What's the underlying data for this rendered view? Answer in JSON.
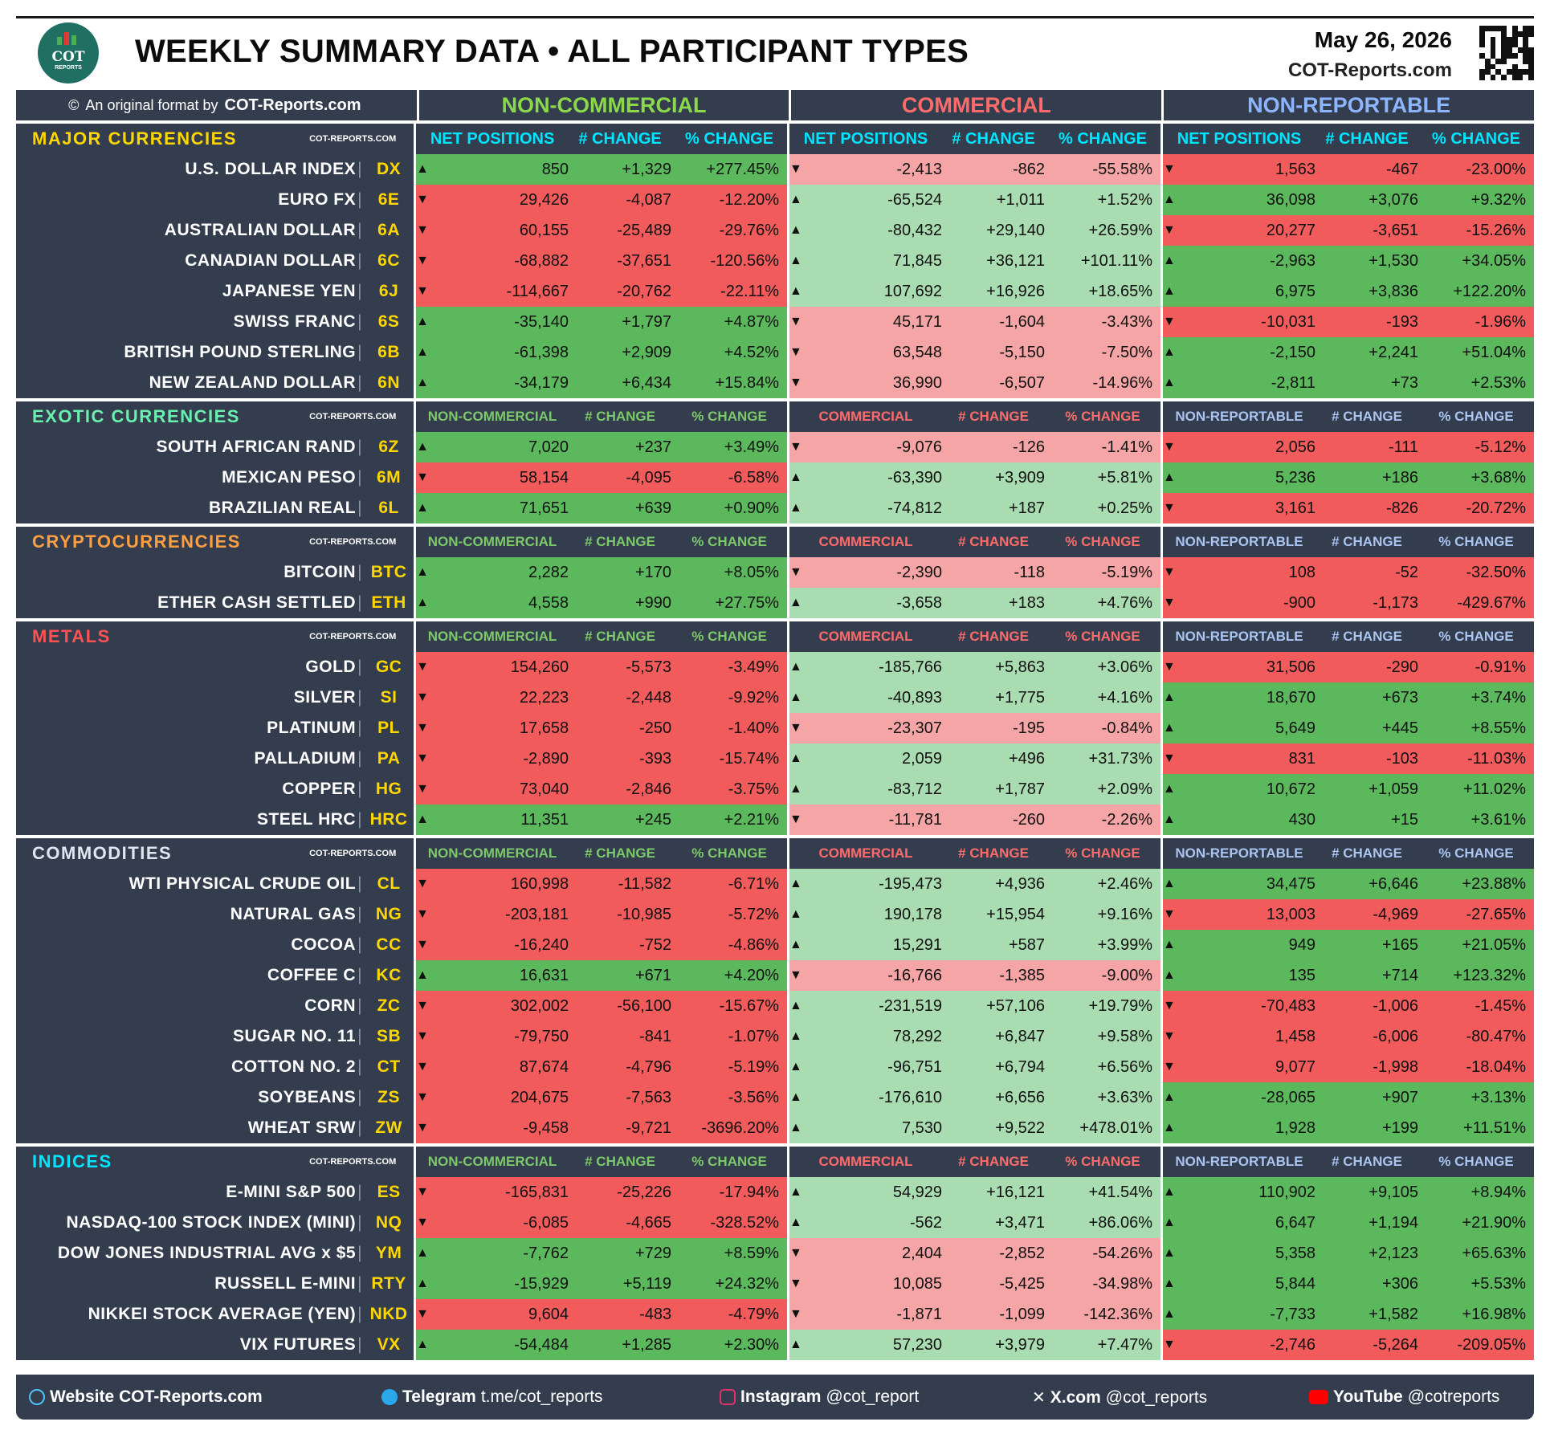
{
  "header": {
    "title": "WEEKLY SUMMARY DATA • ALL PARTICIPANT TYPES",
    "date": "May 26, 2026",
    "site": "COT-Reports.com",
    "logo_text": "COT",
    "logo_sub": "REPORTS"
  },
  "top": {
    "credit_prefix": "An original format by",
    "credit_site": "COT-Reports.com",
    "group_names": [
      "NON-COMMERCIAL",
      "COMMERCIAL",
      "NON-REPORTABLE"
    ],
    "group_colors": [
      "#8bd94a",
      "#ff6b6b",
      "#8eb5ff"
    ]
  },
  "colors": {
    "panel": "#333d4e",
    "nc_up": "#5cb85c",
    "nc_dn": "#f25b5b",
    "c_up": "#a9dcb0",
    "c_dn": "#f5a5a5",
    "nr_up": "#5cb85c",
    "nr_dn": "#f25b5b"
  },
  "sections": [
    {
      "name": "MAJOR CURRENCIES",
      "color": "#ffd600",
      "site": "COT-REPORTS.COM",
      "headers": [
        "NET POSITIONS",
        "# CHANGE",
        "% CHANGE",
        "NET POSITIONS",
        "# CHANGE",
        "% CHANGE",
        "NET POSITIONS",
        "# CHANGE",
        "% CHANGE"
      ],
      "header_color": "#00e5ff",
      "rows": [
        {
          "name": "U.S. DOLLAR INDEX",
          "sym": "DX",
          "nc": [
            "850",
            "+1,329",
            "+277.45%"
          ],
          "c": [
            "-2,413",
            "-862",
            "-55.58%"
          ],
          "nr": [
            "1,563",
            "-467",
            "-23.00%"
          ]
        },
        {
          "name": "EURO FX",
          "sym": "6E",
          "nc": [
            "29,426",
            "-4,087",
            "-12.20%"
          ],
          "c": [
            "-65,524",
            "+1,011",
            "+1.52%"
          ],
          "nr": [
            "36,098",
            "+3,076",
            "+9.32%"
          ]
        },
        {
          "name": "AUSTRALIAN DOLLAR",
          "sym": "6A",
          "nc": [
            "60,155",
            "-25,489",
            "-29.76%"
          ],
          "c": [
            "-80,432",
            "+29,140",
            "+26.59%"
          ],
          "nr": [
            "20,277",
            "-3,651",
            "-15.26%"
          ]
        },
        {
          "name": "CANADIAN DOLLAR",
          "sym": "6C",
          "nc": [
            "-68,882",
            "-37,651",
            "-120.56%"
          ],
          "c": [
            "71,845",
            "+36,121",
            "+101.11%"
          ],
          "nr": [
            "-2,963",
            "+1,530",
            "+34.05%"
          ]
        },
        {
          "name": "JAPANESE YEN",
          "sym": "6J",
          "nc": [
            "-114,667",
            "-20,762",
            "-22.11%"
          ],
          "c": [
            "107,692",
            "+16,926",
            "+18.65%"
          ],
          "nr": [
            "6,975",
            "+3,836",
            "+122.20%"
          ]
        },
        {
          "name": "SWISS FRANC",
          "sym": "6S",
          "nc": [
            "-35,140",
            "+1,797",
            "+4.87%"
          ],
          "c": [
            "45,171",
            "-1,604",
            "-3.43%"
          ],
          "nr": [
            "-10,031",
            "-193",
            "-1.96%"
          ]
        },
        {
          "name": "BRITISH POUND STERLING",
          "sym": "6B",
          "nc": [
            "-61,398",
            "+2,909",
            "+4.52%"
          ],
          "c": [
            "63,548",
            "-5,150",
            "-7.50%"
          ],
          "nr": [
            "-2,150",
            "+2,241",
            "+51.04%"
          ]
        },
        {
          "name": "NEW ZEALAND DOLLAR",
          "sym": "6N",
          "nc": [
            "-34,179",
            "+6,434",
            "+15.84%"
          ],
          "c": [
            "36,990",
            "-6,507",
            "-14.96%"
          ],
          "nr": [
            "-2,811",
            "+73",
            "+2.53%"
          ]
        }
      ]
    },
    {
      "name": "EXOTIC CURRENCIES",
      "color": "#69f0ae",
      "site": "COT-REPORTS.COM",
      "headers": [
        "NON-COMMERCIAL",
        "# CHANGE",
        "% CHANGE",
        "COMMERCIAL",
        "# CHANGE",
        "% CHANGE",
        "NON-REPORTABLE",
        "# CHANGE",
        "% CHANGE"
      ],
      "rows": [
        {
          "name": "SOUTH AFRICAN RAND",
          "sym": "6Z",
          "nc": [
            "7,020",
            "+237",
            "+3.49%"
          ],
          "c": [
            "-9,076",
            "-126",
            "-1.41%"
          ],
          "nr": [
            "2,056",
            "-111",
            "-5.12%"
          ]
        },
        {
          "name": "MEXICAN PESO",
          "sym": "6M",
          "nc": [
            "58,154",
            "-4,095",
            "-6.58%"
          ],
          "c": [
            "-63,390",
            "+3,909",
            "+5.81%"
          ],
          "nr": [
            "5,236",
            "+186",
            "+3.68%"
          ]
        },
        {
          "name": "BRAZILIAN REAL",
          "sym": "6L",
          "nc": [
            "71,651",
            "+639",
            "+0.90%"
          ],
          "c": [
            "-74,812",
            "+187",
            "+0.25%"
          ],
          "nr": [
            "3,161",
            "-826",
            "-20.72%"
          ]
        }
      ]
    },
    {
      "name": "CRYPTOCURRENCIES",
      "color": "#ff9f43",
      "site": "COT-REPORTS.COM",
      "headers": [
        "NON-COMMERCIAL",
        "# CHANGE",
        "% CHANGE",
        "COMMERCIAL",
        "# CHANGE",
        "% CHANGE",
        "NON-REPORTABLE",
        "# CHANGE",
        "% CHANGE"
      ],
      "rows": [
        {
          "name": "BITCOIN",
          "sym": "BTC",
          "nc": [
            "2,282",
            "+170",
            "+8.05%"
          ],
          "c": [
            "-2,390",
            "-118",
            "-5.19%"
          ],
          "nr": [
            "108",
            "-52",
            "-32.50%"
          ]
        },
        {
          "name": "ETHER CASH SETTLED",
          "sym": "ETH",
          "nc": [
            "4,558",
            "+990",
            "+27.75%"
          ],
          "c": [
            "-3,658",
            "+183",
            "+4.76%"
          ],
          "nr": [
            "-900",
            "-1,173",
            "-429.67%"
          ]
        }
      ]
    },
    {
      "name": "METALS",
      "color": "#ff5252",
      "site": "COT-REPORTS.COM",
      "headers": [
        "NON-COMMERCIAL",
        "# CHANGE",
        "% CHANGE",
        "COMMERCIAL",
        "# CHANGE",
        "% CHANGE",
        "NON-REPORTABLE",
        "# CHANGE",
        "% CHANGE"
      ],
      "rows": [
        {
          "name": "GOLD",
          "sym": "GC",
          "nc": [
            "154,260",
            "-5,573",
            "-3.49%"
          ],
          "c": [
            "-185,766",
            "+5,863",
            "+3.06%"
          ],
          "nr": [
            "31,506",
            "-290",
            "-0.91%"
          ]
        },
        {
          "name": "SILVER",
          "sym": "SI",
          "nc": [
            "22,223",
            "-2,448",
            "-9.92%"
          ],
          "c": [
            "-40,893",
            "+1,775",
            "+4.16%"
          ],
          "nr": [
            "18,670",
            "+673",
            "+3.74%"
          ]
        },
        {
          "name": "PLATINUM",
          "sym": "PL",
          "nc": [
            "17,658",
            "-250",
            "-1.40%"
          ],
          "c": [
            "-23,307",
            "-195",
            "-0.84%"
          ],
          "nr": [
            "5,649",
            "+445",
            "+8.55%"
          ]
        },
        {
          "name": "PALLADIUM",
          "sym": "PA",
          "nc": [
            "-2,890",
            "-393",
            "-15.74%"
          ],
          "c": [
            "2,059",
            "+496",
            "+31.73%"
          ],
          "nr": [
            "831",
            "-103",
            "-11.03%"
          ]
        },
        {
          "name": "COPPER",
          "sym": "HG",
          "nc": [
            "73,040",
            "-2,846",
            "-3.75%"
          ],
          "c": [
            "-83,712",
            "+1,787",
            "+2.09%"
          ],
          "nr": [
            "10,672",
            "+1,059",
            "+11.02%"
          ]
        },
        {
          "name": "STEEL HRC",
          "sym": "HRC",
          "nc": [
            "11,351",
            "+245",
            "+2.21%"
          ],
          "c": [
            "-11,781",
            "-260",
            "-2.26%"
          ],
          "nr": [
            "430",
            "+15",
            "+3.61%"
          ]
        }
      ]
    },
    {
      "name": "COMMODITIES",
      "color": "#e0e6ef",
      "site": "COT-REPORTS.COM",
      "headers": [
        "NON-COMMERCIAL",
        "# CHANGE",
        "% CHANGE",
        "COMMERCIAL",
        "# CHANGE",
        "% CHANGE",
        "NON-REPORTABLE",
        "# CHANGE",
        "% CHANGE"
      ],
      "rows": [
        {
          "name": "WTI PHYSICAL CRUDE OIL",
          "sym": "CL",
          "nc": [
            "160,998",
            "-11,582",
            "-6.71%"
          ],
          "c": [
            "-195,473",
            "+4,936",
            "+2.46%"
          ],
          "nr": [
            "34,475",
            "+6,646",
            "+23.88%"
          ]
        },
        {
          "name": "NATURAL GAS",
          "sym": "NG",
          "nc": [
            "-203,181",
            "-10,985",
            "-5.72%"
          ],
          "c": [
            "190,178",
            "+15,954",
            "+9.16%"
          ],
          "nr": [
            "13,003",
            "-4,969",
            "-27.65%"
          ]
        },
        {
          "name": "COCOA",
          "sym": "CC",
          "nc": [
            "-16,240",
            "-752",
            "-4.86%"
          ],
          "c": [
            "15,291",
            "+587",
            "+3.99%"
          ],
          "nr": [
            "949",
            "+165",
            "+21.05%"
          ]
        },
        {
          "name": "COFFEE C",
          "sym": "KC",
          "nc": [
            "16,631",
            "+671",
            "+4.20%"
          ],
          "c": [
            "-16,766",
            "-1,385",
            "-9.00%"
          ],
          "nr": [
            "135",
            "+714",
            "+123.32%"
          ]
        },
        {
          "name": "CORN",
          "sym": "ZC",
          "nc": [
            "302,002",
            "-56,100",
            "-15.67%"
          ],
          "c": [
            "-231,519",
            "+57,106",
            "+19.79%"
          ],
          "nr": [
            "-70,483",
            "-1,006",
            "-1.45%"
          ]
        },
        {
          "name": "SUGAR NO. 11",
          "sym": "SB",
          "nc": [
            "-79,750",
            "-841",
            "-1.07%"
          ],
          "c": [
            "78,292",
            "+6,847",
            "+9.58%"
          ],
          "nr": [
            "1,458",
            "-6,006",
            "-80.47%"
          ]
        },
        {
          "name": "COTTON NO. 2",
          "sym": "CT",
          "nc": [
            "87,674",
            "-4,796",
            "-5.19%"
          ],
          "c": [
            "-96,751",
            "+6,794",
            "+6.56%"
          ],
          "nr": [
            "9,077",
            "-1,998",
            "-18.04%"
          ]
        },
        {
          "name": "SOYBEANS",
          "sym": "ZS",
          "nc": [
            "204,675",
            "-7,563",
            "-3.56%"
          ],
          "c": [
            "-176,610",
            "+6,656",
            "+3.63%"
          ],
          "nr": [
            "-28,065",
            "+907",
            "+3.13%"
          ]
        },
        {
          "name": "WHEAT SRW",
          "sym": "ZW",
          "nc": [
            "-9,458",
            "-9,721",
            "-3696.20%"
          ],
          "c": [
            "7,530",
            "+9,522",
            "+478.01%"
          ],
          "nr": [
            "1,928",
            "+199",
            "+11.51%"
          ]
        }
      ]
    },
    {
      "name": "INDICES",
      "color": "#00e5ff",
      "site": "COT-REPORTS.COM",
      "headers": [
        "NON-COMMERCIAL",
        "# CHANGE",
        "% CHANGE",
        "COMMERCIAL",
        "# CHANGE",
        "% CHANGE",
        "NON-REPORTABLE",
        "# CHANGE",
        "% CHANGE"
      ],
      "rows": [
        {
          "name": "E-MINI S&P 500",
          "sym": "ES",
          "nc": [
            "-165,831",
            "-25,226",
            "-17.94%"
          ],
          "c": [
            "54,929",
            "+16,121",
            "+41.54%"
          ],
          "nr": [
            "110,902",
            "+9,105",
            "+8.94%"
          ]
        },
        {
          "name": "NASDAQ-100 STOCK INDEX (MINI)",
          "sym": "NQ",
          "nc": [
            "-6,085",
            "-4,665",
            "-328.52%"
          ],
          "c": [
            "-562",
            "+3,471",
            "+86.06%"
          ],
          "nr": [
            "6,647",
            "+1,194",
            "+21.90%"
          ]
        },
        {
          "name": "DOW JONES INDUSTRIAL AVG x $5",
          "sym": "YM",
          "nc": [
            "-7,762",
            "+729",
            "+8.59%"
          ],
          "c": [
            "2,404",
            "-2,852",
            "-54.26%"
          ],
          "nr": [
            "5,358",
            "+2,123",
            "+65.63%"
          ]
        },
        {
          "name": "RUSSELL E-MINI",
          "sym": "RTY",
          "nc": [
            "-15,929",
            "+5,119",
            "+24.32%"
          ],
          "c": [
            "10,085",
            "-5,425",
            "-34.98%"
          ],
          "nr": [
            "5,844",
            "+306",
            "+5.53%"
          ]
        },
        {
          "name": "NIKKEI STOCK AVERAGE (YEN)",
          "sym": "NKD",
          "nc": [
            "9,604",
            "-483",
            "-4.79%"
          ],
          "c": [
            "-1,871",
            "-1,099",
            "-142.36%"
          ],
          "nr": [
            "-7,733",
            "+1,582",
            "+16.98%"
          ]
        },
        {
          "name": "VIX FUTURES",
          "sym": "VX",
          "nc": [
            "-54,484",
            "+1,285",
            "+2.30%"
          ],
          "c": [
            "57,230",
            "+3,979",
            "+7.47%"
          ],
          "nr": [
            "-2,746",
            "-5,264",
            "-209.05%"
          ]
        }
      ]
    }
  ],
  "footer": {
    "website_label": "Website",
    "website": "COT-Reports.com",
    "telegram_label": "Telegram",
    "telegram": "t.me/cot_reports",
    "instagram_label": "Instagram",
    "instagram": "@cot_report",
    "x_label": "X.com",
    "x": "@cot_reports",
    "youtube_label": "YouTube",
    "youtube": "@cotreports"
  }
}
